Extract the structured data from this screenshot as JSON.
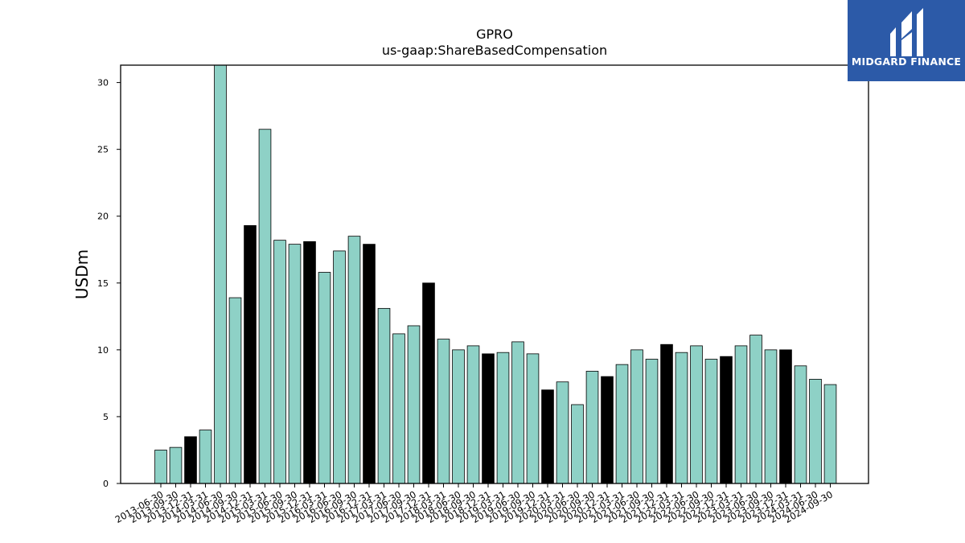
{
  "chart_data": {
    "type": "bar",
    "title": "GPRO",
    "subtitle": "us-gaap:ShareBasedCompensation",
    "xlabel": "",
    "ylabel": "USDm",
    "ylim": [
      0,
      31.3
    ],
    "yticks": [
      0,
      5,
      10,
      15,
      20,
      25,
      30
    ],
    "grid": false,
    "colors": {
      "quarter": "#8ed1c6",
      "fourth_quarter": "#000000",
      "edge": "#000000"
    },
    "categories": [
      "2013-06-30",
      "2013-09-30",
      "2013-12-31",
      "2014-03-31",
      "2014-06-30",
      "2014-09-30",
      "2014-12-31",
      "2015-03-31",
      "2015-06-30",
      "2015-09-30",
      "2015-12-31",
      "2016-03-31",
      "2016-06-30",
      "2016-09-30",
      "2016-12-31",
      "2017-03-31",
      "2017-06-30",
      "2017-09-30",
      "2017-12-31",
      "2018-03-31",
      "2018-06-30",
      "2018-09-30",
      "2018-12-31",
      "2019-03-31",
      "2019-06-30",
      "2019-09-30",
      "2019-12-31",
      "2020-03-31",
      "2020-06-30",
      "2020-09-30",
      "2020-12-31",
      "2021-03-31",
      "2021-06-30",
      "2021-09-30",
      "2021-12-31",
      "2022-03-31",
      "2022-06-30",
      "2022-09-30",
      "2022-12-31",
      "2023-03-31",
      "2023-06-30",
      "2023-09-30",
      "2023-12-31",
      "2024-03-31",
      "2024-06-30",
      "2024-09-30"
    ],
    "values": [
      2.5,
      2.7,
      3.5,
      4.0,
      31.5,
      13.9,
      19.3,
      26.5,
      18.2,
      17.9,
      18.1,
      15.8,
      17.4,
      18.5,
      17.9,
      13.1,
      11.2,
      11.8,
      15.0,
      10.8,
      10.0,
      10.3,
      9.7,
      9.8,
      10.6,
      9.7,
      7.0,
      7.6,
      5.9,
      8.4,
      8.0,
      8.9,
      10.0,
      9.3,
      10.4,
      9.8,
      10.3,
      9.3,
      9.5,
      10.3,
      11.1,
      10.0,
      10.0,
      8.8,
      7.8,
      7.4
    ],
    "highlight": [
      false,
      false,
      true,
      false,
      false,
      false,
      true,
      false,
      false,
      false,
      true,
      false,
      false,
      false,
      true,
      false,
      false,
      false,
      true,
      false,
      false,
      false,
      true,
      false,
      false,
      false,
      true,
      false,
      false,
      false,
      true,
      false,
      false,
      false,
      true,
      false,
      false,
      false,
      true,
      false,
      false,
      false,
      true,
      false,
      false,
      false
    ]
  },
  "logo": {
    "text": "MIDGARD FINANCE",
    "background": "#2c5aa8"
  }
}
